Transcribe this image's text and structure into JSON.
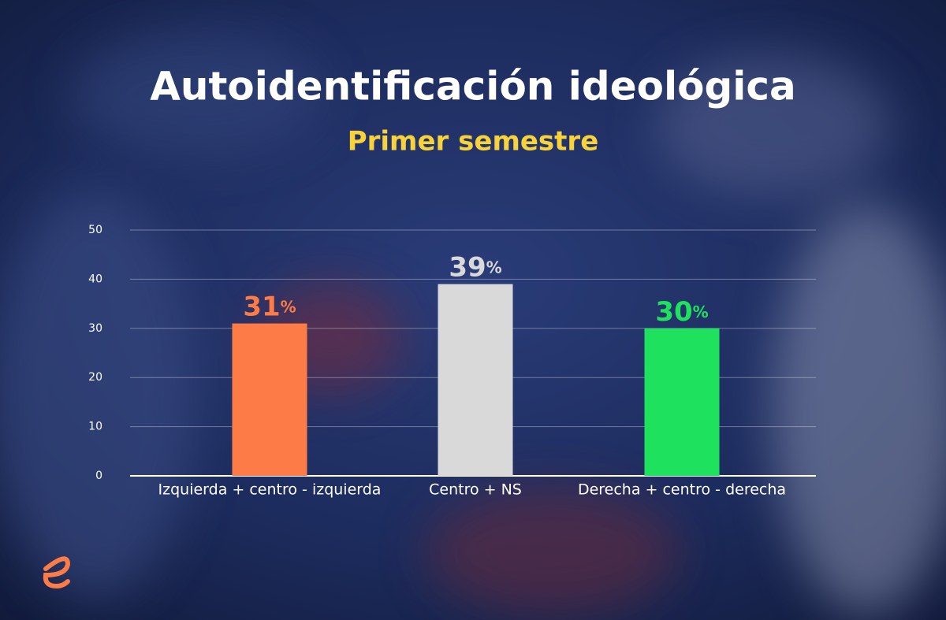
{
  "chart_data": {
    "type": "bar",
    "title": "Autoidentificación ideológica",
    "subtitle": "Primer semestre",
    "categories": [
      "Izquierda + centro - izquierda",
      "Centro + NS",
      "Derecha + centro - derecha"
    ],
    "values": [
      31,
      39,
      30
    ],
    "value_labels": [
      "31%",
      "39%",
      "30%"
    ],
    "colors": [
      "#fd7b46",
      "#d9d9d9",
      "#1ee15e"
    ],
    "ylim": [
      0,
      50
    ],
    "yticks": [
      0,
      10,
      20,
      30,
      40,
      50
    ],
    "grid": true
  }
}
